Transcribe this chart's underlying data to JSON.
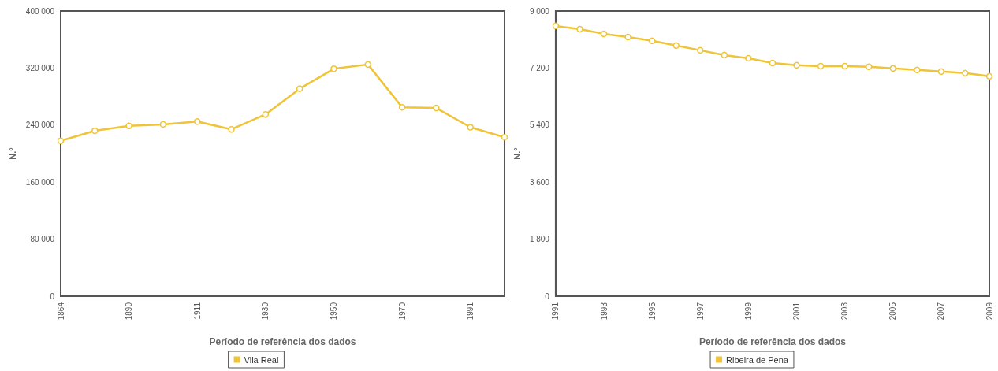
{
  "chart_data": [
    {
      "type": "line",
      "xlabel": "Período de referência dos dados",
      "ylabel": "N.°",
      "categories": [
        "1864",
        null,
        "1890",
        null,
        "1911",
        null,
        "1930",
        null,
        "1950",
        null,
        "1970",
        null,
        "1991",
        null
      ],
      "series": [
        {
          "name": "Vila Real",
          "color": "#efc437",
          "values": [
            218000,
            232000,
            239000,
            241000,
            245000,
            234000,
            255000,
            291000,
            319000,
            325000,
            265000,
            264000,
            237000,
            223000
          ]
        }
      ],
      "ylim": [
        0,
        400000
      ],
      "yticks": [
        {
          "value": 0,
          "label": "0"
        },
        {
          "value": 80000,
          "label": "80 000"
        },
        {
          "value": 160000,
          "label": "160 000"
        },
        {
          "value": 240000,
          "label": "240 000"
        },
        {
          "value": 320000,
          "label": "320 000"
        },
        {
          "value": 400000,
          "label": "400 000"
        }
      ],
      "grid": false,
      "legend": "bottom",
      "marker": "circle"
    },
    {
      "type": "line",
      "xlabel": "Período de referência dos dados",
      "ylabel": "N.°",
      "categories": [
        "1991",
        null,
        "1993",
        null,
        "1995",
        null,
        "1997",
        null,
        "1999",
        null,
        "2001",
        null,
        "2003",
        null,
        "2005",
        null,
        "2007",
        null,
        "2009"
      ],
      "series": [
        {
          "name": "Ribeira de Pena",
          "color": "#efc437",
          "values": [
            8530,
            8430,
            8280,
            8180,
            8060,
            7910,
            7760,
            7610,
            7510,
            7360,
            7290,
            7260,
            7260,
            7240,
            7190,
            7140,
            7090,
            7040,
            6940
          ]
        }
      ],
      "ylim": [
        0,
        9000
      ],
      "yticks": [
        {
          "value": 0,
          "label": "0"
        },
        {
          "value": 1800,
          "label": "1 800"
        },
        {
          "value": 3600,
          "label": "3 600"
        },
        {
          "value": 5400,
          "label": "5 400"
        },
        {
          "value": 7200,
          "label": "7 200"
        },
        {
          "value": 9000,
          "label": "9 000"
        }
      ],
      "grid": false,
      "legend": "bottom",
      "marker": "circle"
    }
  ]
}
